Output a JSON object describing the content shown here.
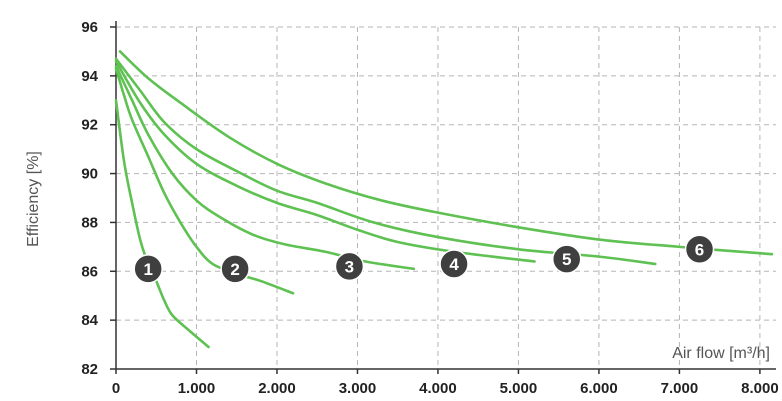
{
  "chart_data": {
    "type": "line",
    "ylabel": "Efficiency [%]",
    "xlabel": "Air flow [m³/h]",
    "xlim": [
      0,
      8200
    ],
    "ylim": [
      82,
      96
    ],
    "grid": true,
    "x_ticks": [
      0,
      1000,
      2000,
      3000,
      4000,
      5000,
      6000,
      7000,
      8000
    ],
    "x_tick_labels": [
      "0",
      "1.000",
      "2.000",
      "3.000",
      "4.000",
      "5.000",
      "6.000",
      "7.000",
      "8.000"
    ],
    "y_ticks": [
      82,
      84,
      86,
      88,
      90,
      92,
      94,
      96
    ],
    "y_tick_labels": [
      "82",
      "84",
      "86",
      "88",
      "90",
      "92",
      "94",
      "96"
    ],
    "line_color": "#5ec152",
    "badge_color": "#3f3f3f",
    "series": [
      {
        "label": "1",
        "points": [
          [
            0,
            93.0
          ],
          [
            100,
            90.5
          ],
          [
            200,
            88.8
          ],
          [
            300,
            87.3
          ],
          [
            400,
            86.3
          ],
          [
            500,
            85.6
          ],
          [
            600,
            84.8
          ],
          [
            700,
            84.2
          ],
          [
            900,
            83.6
          ],
          [
            1150,
            82.9
          ]
        ],
        "badge": [
          400,
          86.1
        ]
      },
      {
        "label": "2",
        "points": [
          [
            0,
            94.3
          ],
          [
            100,
            93.2
          ],
          [
            200,
            92.2
          ],
          [
            400,
            90.7
          ],
          [
            600,
            89.2
          ],
          [
            800,
            88.0
          ],
          [
            1000,
            87.0
          ],
          [
            1200,
            86.3
          ],
          [
            1500,
            85.9
          ],
          [
            1800,
            85.6
          ],
          [
            2200,
            85.1
          ]
        ],
        "badge": [
          1480,
          86.1
        ]
      },
      {
        "label": "3",
        "points": [
          [
            0,
            94.4
          ],
          [
            200,
            93.0
          ],
          [
            400,
            91.6
          ],
          [
            700,
            90.0
          ],
          [
            1000,
            88.9
          ],
          [
            1300,
            88.2
          ],
          [
            1700,
            87.5
          ],
          [
            2100,
            87.1
          ],
          [
            2600,
            86.8
          ],
          [
            3100,
            86.4
          ],
          [
            3700,
            86.1
          ]
        ],
        "badge": [
          2900,
          86.2
        ]
      },
      {
        "label": "4",
        "points": [
          [
            0,
            94.6
          ],
          [
            300,
            92.9
          ],
          [
            600,
            91.6
          ],
          [
            1000,
            90.4
          ],
          [
            1500,
            89.5
          ],
          [
            2000,
            88.8
          ],
          [
            2500,
            88.3
          ],
          [
            3000,
            87.7
          ],
          [
            3500,
            87.2
          ],
          [
            4200,
            86.8
          ],
          [
            5200,
            86.4
          ]
        ],
        "badge": [
          4200,
          86.3
        ]
      },
      {
        "label": "5",
        "points": [
          [
            0,
            94.7
          ],
          [
            300,
            93.4
          ],
          [
            600,
            92.1
          ],
          [
            1000,
            91.0
          ],
          [
            1500,
            90.1
          ],
          [
            2000,
            89.3
          ],
          [
            2500,
            88.8
          ],
          [
            3200,
            88.0
          ],
          [
            4000,
            87.4
          ],
          [
            5000,
            86.9
          ],
          [
            6000,
            86.6
          ],
          [
            6700,
            86.3
          ]
        ],
        "badge": [
          5600,
          86.5
        ]
      },
      {
        "label": "6",
        "points": [
          [
            50,
            95.0
          ],
          [
            400,
            93.9
          ],
          [
            800,
            92.9
          ],
          [
            1400,
            91.5
          ],
          [
            2000,
            90.4
          ],
          [
            2600,
            89.6
          ],
          [
            3300,
            88.9
          ],
          [
            4000,
            88.4
          ],
          [
            5000,
            87.8
          ],
          [
            6000,
            87.3
          ],
          [
            7000,
            87.0
          ],
          [
            8150,
            86.7
          ]
        ],
        "badge": [
          7250,
          86.9
        ]
      }
    ]
  }
}
